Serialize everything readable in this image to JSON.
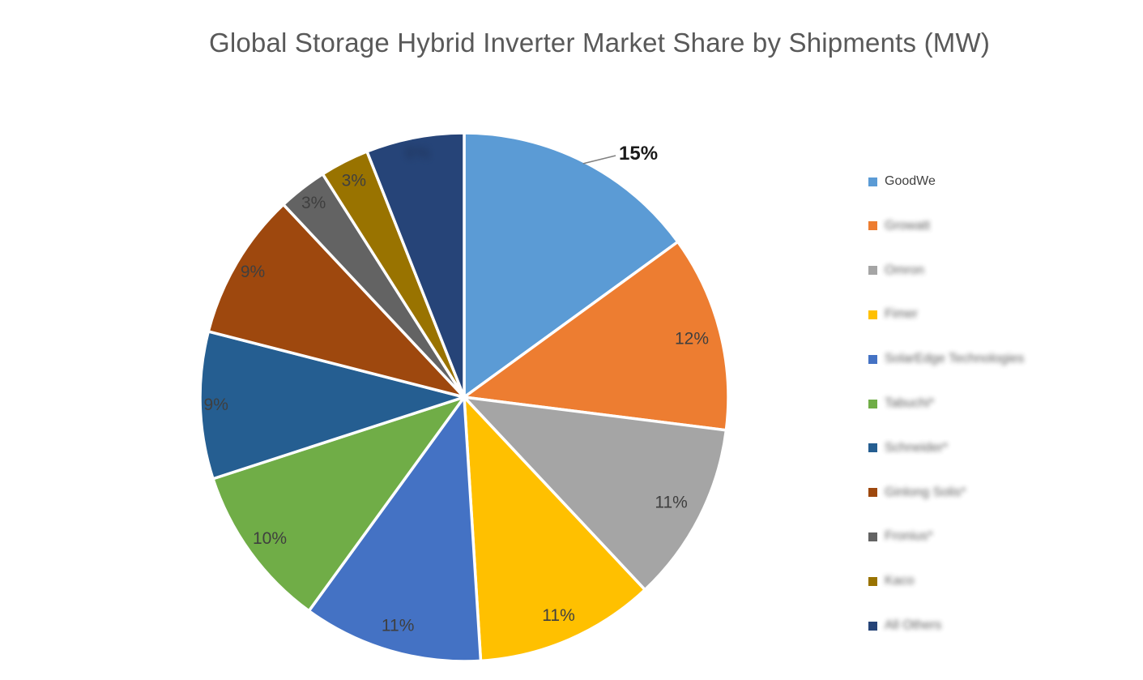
{
  "chart_data": {
    "type": "pie",
    "title": "Global Storage Hybrid Inverter Market Share by Shipments (MW)",
    "unit": "%",
    "start_angle_deg": 0,
    "direction": "clockwise",
    "legend_position": "right",
    "slices": [
      {
        "id": "goodwe",
        "label": "GoodWe",
        "value": 15,
        "color": "#5B9BD5",
        "data_label": "15%",
        "label_placement": "outside",
        "label_emphasis": true,
        "label_blurred": false,
        "legend_blurred": false
      },
      {
        "id": "growatt",
        "label": "Growatt",
        "value": 12,
        "color": "#ED7D31",
        "data_label": "12%",
        "label_placement": "inside",
        "label_emphasis": false,
        "label_blurred": false,
        "legend_blurred": true,
        "label_radius": 0.89
      },
      {
        "id": "omron",
        "label": "Omron",
        "value": 11,
        "color": "#A5A5A5",
        "data_label": "11%",
        "label_placement": "inside",
        "label_emphasis": false,
        "label_blurred": false,
        "legend_blurred": true,
        "label_radius": 0.88
      },
      {
        "id": "fimer",
        "label": "Fimer",
        "value": 11,
        "color": "#FFC000",
        "data_label": "11%",
        "label_placement": "inside",
        "label_emphasis": false,
        "label_blurred": false,
        "legend_blurred": true,
        "label_radius": 0.9
      },
      {
        "id": "solaredge",
        "label": "SolarEdge Technologies",
        "value": 11,
        "color": "#4472C4",
        "data_label": "11%",
        "label_placement": "inside",
        "label_emphasis": false,
        "label_blurred": false,
        "legend_blurred": true,
        "label_radius": 0.9
      },
      {
        "id": "tabuchi",
        "label": "Tabuchi*",
        "value": 10,
        "color": "#70AD47",
        "data_label": "10%",
        "label_placement": "inside",
        "label_emphasis": false,
        "label_blurred": false,
        "legend_blurred": true,
        "label_radius": 0.91
      },
      {
        "id": "schneider",
        "label": "Schneider*",
        "value": 9,
        "color": "#255E91",
        "data_label": "9%",
        "label_placement": "inside",
        "label_emphasis": false,
        "label_blurred": false,
        "legend_blurred": true,
        "label_radius": 0.94
      },
      {
        "id": "ginlong",
        "label": "Ginlong Solis*",
        "value": 9,
        "color": "#9E480E",
        "data_label": "9%",
        "label_placement": "inside",
        "label_emphasis": false,
        "label_blurred": false,
        "legend_blurred": true,
        "label_radius": 0.93
      },
      {
        "id": "fronius",
        "label": "Fronius*",
        "value": 3,
        "color": "#636363",
        "data_label": "3%",
        "label_placement": "inside",
        "label_emphasis": false,
        "label_blurred": false,
        "legend_blurred": true,
        "label_radius": 0.93
      },
      {
        "id": "kaco",
        "label": "Kaco",
        "value": 3,
        "color": "#997300",
        "data_label": "3%",
        "label_placement": "inside",
        "label_emphasis": false,
        "label_blurred": false,
        "legend_blurred": true,
        "label_radius": 0.92
      },
      {
        "id": "all-others",
        "label": "All Others",
        "value": 6,
        "color": "#264478",
        "data_label": "6%",
        "label_placement": "inside",
        "label_emphasis": false,
        "label_blurred": true,
        "legend_blurred": true,
        "label_radius": 0.94
      }
    ],
    "colors": {
      "background": "#FFFFFF",
      "title_text": "#595959",
      "data_label_text": "#3F3F3F",
      "emphasis_label_text": "#1A1A1A",
      "blurred_label_text": "#1E3255",
      "leader_line": "#808080",
      "slice_separator": "#FFFFFF",
      "legend_text": "#404040"
    }
  }
}
